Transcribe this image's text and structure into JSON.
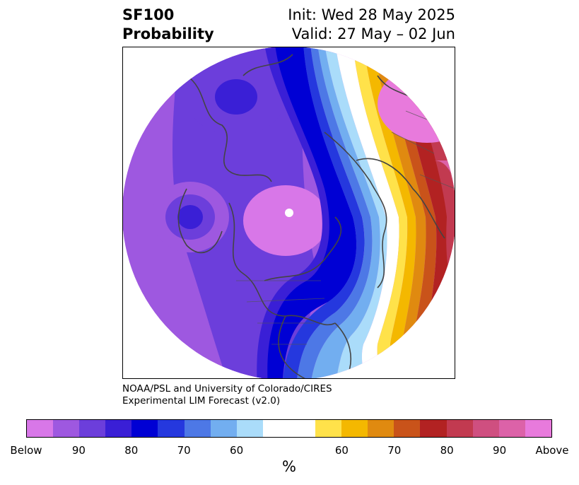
{
  "header": {
    "product_line1": "SF100",
    "product_line2": "Probability",
    "init_line": "Init: Wed 28 May 2025",
    "valid_line": "Valid: 27 May – 02 Jun"
  },
  "credit": {
    "line1": "NOAA/PSL and University of Colorado/CIRES",
    "line2": "Experimental LIM Forecast (v2.0)"
  },
  "colorbar": {
    "unit": "%",
    "colors_below": [
      "#d877e8",
      "#9e58e0",
      "#6c3edb",
      "#3a1fd6",
      "#0000d4",
      "#2538de",
      "#4d78e6",
      "#72aef0",
      "#aadcfa"
    ],
    "neutral_color": "#ffffff",
    "colors_above": [
      "#ffe24a",
      "#f4b800",
      "#e08a10",
      "#c9531a",
      "#b22222",
      "#c23a50",
      "#cf4f80",
      "#dc62a8",
      "#e87adc"
    ],
    "tick_labels": [
      "Below",
      "90",
      "80",
      "70",
      "60",
      "60",
      "70",
      "80",
      "90",
      "Above"
    ]
  },
  "map": {
    "projection": "north-polar-stereographic",
    "regions": {
      "north_america": "below-normal",
      "north_pacific_low": "below-normal",
      "arctic": "below-normal",
      "western_north_atlantic": "below-normal",
      "europe": "above-normal",
      "north_africa": "above-normal",
      "eastern_atlantic": "above-normal"
    }
  }
}
